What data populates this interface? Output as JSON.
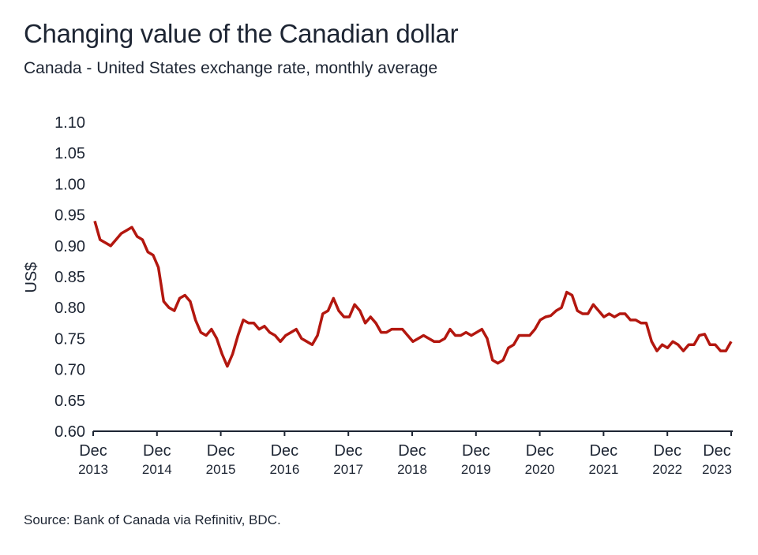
{
  "chart_data": {
    "type": "line",
    "title": "Changing value of the Canadian dollar",
    "subtitle": "Canada - United States exchange rate, monthly average",
    "ylabel": "US$",
    "xlabel": "",
    "ylim": [
      0.6,
      1.1
    ],
    "yticks": [
      "0.60",
      "0.65",
      "0.70",
      "0.75",
      "0.80",
      "0.85",
      "0.90",
      "0.95",
      "1.00",
      "1.05",
      "1.10"
    ],
    "xticks": [
      {
        "month": "Dec",
        "year": "2013"
      },
      {
        "month": "Dec",
        "year": "2014"
      },
      {
        "month": "Dec",
        "year": "2015"
      },
      {
        "month": "Dec",
        "year": "2016"
      },
      {
        "month": "Dec",
        "year": "2017"
      },
      {
        "month": "Dec",
        "year": "2018"
      },
      {
        "month": "Dec",
        "year": "2019"
      },
      {
        "month": "Dec",
        "year": "2020"
      },
      {
        "month": "Dec",
        "year": "2021"
      },
      {
        "month": "Dec",
        "year": "2022"
      },
      {
        "month": "Dec",
        "year": "2023"
      }
    ],
    "x_start": "2013-12",
    "x_end": "2023-12",
    "grid": false,
    "line_color": "#b3170f",
    "values": [
      0.94,
      0.91,
      0.905,
      0.9,
      0.91,
      0.92,
      0.925,
      0.93,
      0.915,
      0.91,
      0.89,
      0.885,
      0.865,
      0.81,
      0.8,
      0.795,
      0.815,
      0.82,
      0.81,
      0.78,
      0.76,
      0.755,
      0.765,
      0.75,
      0.725,
      0.705,
      0.725,
      0.755,
      0.78,
      0.775,
      0.775,
      0.765,
      0.77,
      0.76,
      0.755,
      0.745,
      0.755,
      0.76,
      0.765,
      0.75,
      0.745,
      0.74,
      0.755,
      0.79,
      0.795,
      0.815,
      0.795,
      0.785,
      0.785,
      0.805,
      0.795,
      0.775,
      0.785,
      0.775,
      0.76,
      0.76,
      0.765,
      0.765,
      0.765,
      0.755,
      0.745,
      0.75,
      0.755,
      0.75,
      0.745,
      0.745,
      0.75,
      0.765,
      0.755,
      0.755,
      0.76,
      0.755,
      0.76,
      0.765,
      0.75,
      0.715,
      0.71,
      0.715,
      0.735,
      0.74,
      0.755,
      0.755,
      0.755,
      0.765,
      0.78,
      0.785,
      0.787,
      0.795,
      0.8,
      0.825,
      0.82,
      0.795,
      0.79,
      0.79,
      0.805,
      0.795,
      0.785,
      0.79,
      0.785,
      0.79,
      0.79,
      0.78,
      0.78,
      0.775,
      0.775,
      0.745,
      0.73,
      0.74,
      0.735,
      0.745,
      0.74,
      0.73,
      0.74,
      0.74,
      0.755,
      0.757,
      0.74,
      0.74,
      0.73,
      0.73,
      0.745
    ]
  },
  "source": "Source: Bank of Canada via Refinitiv, BDC."
}
